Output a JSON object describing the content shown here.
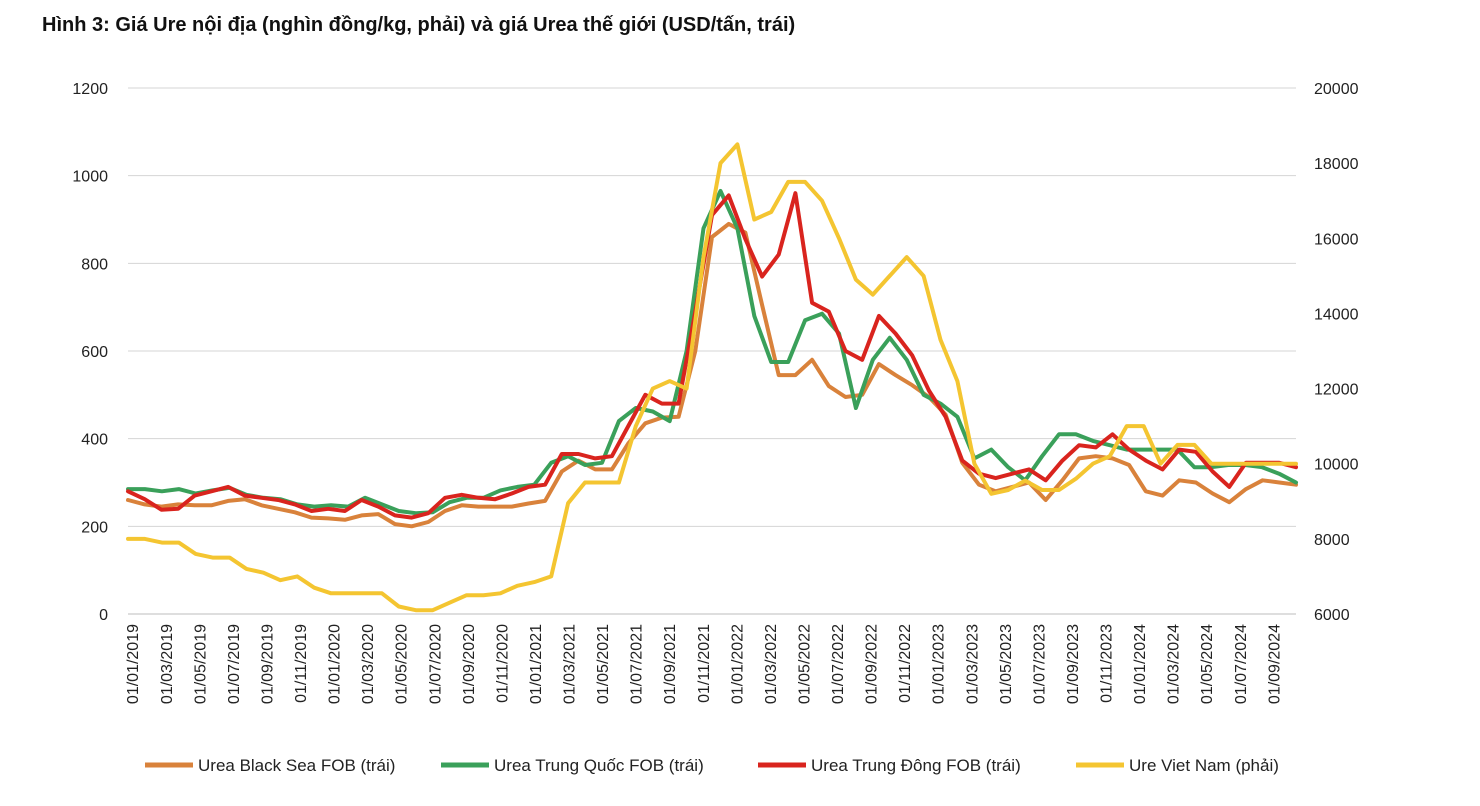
{
  "chart_data": {
    "type": "line",
    "title": "Hình 3: Giá Ure nội địa (nghìn đồng/kg, phải) và giá Urea thế giới  (USD/tấn, trái)",
    "xlabel": "",
    "ylabel_left": "USD/tấn",
    "ylabel_right": "nghìn đồng/kg",
    "ylim_left": [
      0,
      1200
    ],
    "ylim_right": [
      6000,
      20000
    ],
    "yticks_left": [
      "0",
      "200",
      "400",
      "600",
      "800",
      "1000",
      "1200"
    ],
    "yticks_right": [
      "6000",
      "8000",
      "10000",
      "12000",
      "14000",
      "16000",
      "18000",
      "20000"
    ],
    "x_tick_labels": [
      "01/01/2019",
      "01/03/2019",
      "01/05/2019",
      "01/07/2019",
      "01/09/2019",
      "01/11/2019",
      "01/01/2020",
      "01/03/2020",
      "01/05/2020",
      "01/07/2020",
      "01/09/2020",
      "01/11/2020",
      "01/01/2021",
      "01/03/2021",
      "01/05/2021",
      "01/07/2021",
      "01/09/2021",
      "01/11/2021",
      "01/01/2022",
      "01/03/2022",
      "01/05/2022",
      "01/07/2022",
      "01/09/2022",
      "01/11/2022",
      "01/01/2023",
      "01/03/2023",
      "01/05/2023",
      "01/07/2023",
      "01/09/2023",
      "01/11/2023",
      "01/01/2024",
      "01/03/2024",
      "01/05/2024",
      "01/07/2024",
      "01/09/2024"
    ],
    "legend_position": "bottom",
    "grid": true,
    "series": [
      {
        "name": "Urea Black Sea FOB (trái)",
        "axis": "left",
        "color": "#D9823B",
        "values": [
          260,
          250,
          245,
          250,
          248,
          248,
          258,
          262,
          248,
          240,
          232,
          220,
          218,
          215,
          225,
          228,
          205,
          200,
          210,
          235,
          248,
          245,
          245,
          245,
          252,
          258,
          325,
          350,
          330,
          330,
          390,
          435,
          448,
          450,
          600,
          860,
          890,
          870,
          705,
          545,
          545,
          580,
          520,
          495,
          500,
          570,
          545,
          522,
          495,
          455,
          345,
          295,
          280,
          290,
          300,
          260,
          305,
          355,
          360,
          355,
          340,
          280,
          270,
          305,
          300,
          275,
          255,
          285,
          305,
          300,
          295
        ]
      },
      {
        "name": "Urea Trung Quốc FOB (trái)",
        "axis": "left",
        "color": "#3AA05A",
        "values": [
          285,
          285,
          280,
          285,
          275,
          282,
          288,
          272,
          265,
          262,
          250,
          245,
          248,
          245,
          265,
          250,
          235,
          230,
          232,
          255,
          265,
          265,
          282,
          290,
          295,
          345,
          360,
          340,
          345,
          440,
          470,
          462,
          440,
          600,
          880,
          965,
          880,
          680,
          575,
          575,
          670,
          685,
          640,
          470,
          580,
          630,
          580,
          500,
          480,
          450,
          355,
          375,
          335,
          305,
          360,
          410,
          410,
          395,
          385,
          375,
          375,
          375,
          375,
          335,
          335,
          340,
          340,
          335,
          320,
          300
        ]
      },
      {
        "name": "Urea Trung Đông FOB (trái)",
        "axis": "left",
        "color": "#D9241E",
        "values": [
          280,
          262,
          238,
          240,
          270,
          280,
          290,
          270,
          265,
          260,
          250,
          235,
          240,
          235,
          260,
          245,
          225,
          220,
          230,
          265,
          272,
          265,
          262,
          275,
          290,
          295,
          365,
          365,
          355,
          360,
          430,
          500,
          480,
          480,
          690,
          910,
          955,
          855,
          770,
          820,
          960,
          710,
          690,
          600,
          580,
          680,
          640,
          590,
          510,
          450,
          350,
          320,
          310,
          320,
          330,
          305,
          350,
          385,
          380,
          410,
          375,
          350,
          330,
          375,
          370,
          325,
          290,
          345,
          345,
          345,
          335
        ]
      },
      {
        "name": "Ure Viet Nam (phải)",
        "axis": "right",
        "color": "#F4C531",
        "values": [
          8000,
          8000,
          7900,
          7900,
          7600,
          7500,
          7500,
          7200,
          7100,
          6900,
          7000,
          6700,
          6550,
          6550,
          6550,
          6550,
          6200,
          6100,
          6100,
          6300,
          6500,
          6500,
          6550,
          6750,
          6850,
          7000,
          8950,
          9500,
          9500,
          9500,
          11000,
          12000,
          12200,
          12000,
          15500,
          18000,
          18500,
          16500,
          16700,
          17500,
          17500,
          17000,
          16000,
          14900,
          14500,
          15000,
          15500,
          15000,
          13300,
          12200,
          10000,
          9200,
          9300,
          9550,
          9300,
          9300,
          9600,
          10000,
          10200,
          11000,
          11000,
          10000,
          10500,
          10500,
          10000,
          10000,
          10000,
          10000,
          10000,
          10000
        ]
      }
    ]
  }
}
